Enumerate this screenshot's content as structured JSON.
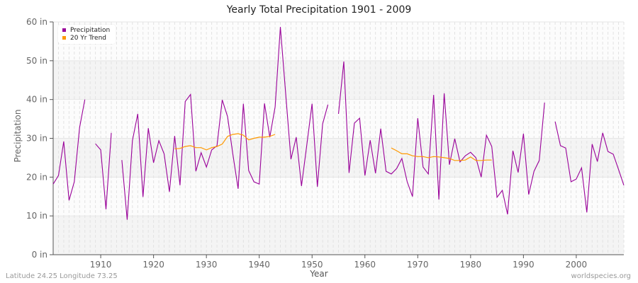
{
  "title": "Yearly Total Precipitation 1901 - 2009",
  "footer": {
    "location": "Latitude 24.25 Longitude 73.25",
    "source": "worldspecies.org"
  },
  "legend": [
    {
      "label": "Precipitation",
      "color": "#990099"
    },
    {
      "label": "20 Yr Trend",
      "color": "#ff9900"
    }
  ],
  "chart_data": {
    "type": "line",
    "title": "Yearly Total Precipitation 1901 - 2009",
    "xlabel": "Year",
    "ylabel": "Precipitation",
    "xlim": [
      1901,
      2009
    ],
    "ylim": [
      0,
      60
    ],
    "x_ticks": [
      1910,
      1920,
      1930,
      1940,
      1950,
      1960,
      1970,
      1980,
      1990,
      2000
    ],
    "y_ticks": [
      "0 in",
      "10 in",
      "20 in",
      "30 in",
      "40 in",
      "50 in",
      "60 in"
    ],
    "grid": true,
    "legend_position": "top-left",
    "series": [
      {
        "name": "Precipitation",
        "color": "#990099",
        "x": [
          1901,
          1902,
          1903,
          1904,
          1905,
          1906,
          1907,
          1908,
          1909,
          1910,
          1911,
          1912,
          1913,
          1914,
          1915,
          1916,
          1917,
          1918,
          1919,
          1920,
          1921,
          1922,
          1923,
          1924,
          1925,
          1926,
          1927,
          1928,
          1929,
          1930,
          1931,
          1932,
          1933,
          1934,
          1935,
          1936,
          1937,
          1938,
          1939,
          1940,
          1941,
          1942,
          1943,
          1944,
          1945,
          1946,
          1947,
          1948,
          1949,
          1950,
          1951,
          1952,
          1953,
          1954,
          1955,
          1956,
          1957,
          1958,
          1959,
          1960,
          1961,
          1962,
          1963,
          1964,
          1965,
          1966,
          1967,
          1968,
          1969,
          1970,
          1971,
          1972,
          1973,
          1974,
          1975,
          1976,
          1977,
          1978,
          1979,
          1980,
          1981,
          1982,
          1983,
          1984,
          1985,
          1986,
          1987,
          1988,
          1989,
          1990,
          1991,
          1992,
          1993,
          1994,
          1995,
          1996,
          1997,
          1998,
          1999,
          2000,
          2001,
          2002,
          2003,
          2004,
          2005,
          2006,
          2007,
          2008,
          2009
        ],
        "values": [
          18.2,
          20.4,
          29.2,
          14.0,
          18.8,
          32.8,
          40.0,
          null,
          28.6,
          27.0,
          11.7,
          31.4,
          null,
          24.4,
          9.0,
          29.4,
          36.3,
          14.9,
          32.6,
          23.7,
          29.4,
          26.0,
          16.2,
          30.6,
          17.9,
          39.5,
          41.3,
          21.5,
          26.3,
          22.6,
          27.0,
          28.1,
          39.9,
          35.6,
          26.0,
          17.0,
          38.9,
          21.7,
          18.8,
          18.2,
          39.0,
          30.3,
          38.1,
          58.7,
          41.5,
          24.6,
          30.3,
          17.7,
          28.3,
          38.9,
          17.5,
          33.7,
          38.7,
          null,
          36.3,
          49.8,
          21.1,
          33.9,
          35.2,
          20.4,
          29.5,
          21.0,
          32.5,
          21.5,
          20.8,
          22.2,
          24.8,
          18.8,
          15.0,
          35.2,
          22.6,
          20.8,
          41.2,
          14.2,
          41.6,
          23.2,
          29.9,
          23.9,
          25.5,
          26.4,
          25.0,
          20.0,
          30.8,
          27.9,
          14.8,
          16.6,
          10.4,
          26.8,
          21.2,
          31.2,
          15.5,
          21.5,
          24.3,
          39.2,
          null,
          34.3,
          28.1,
          27.5,
          18.8,
          19.5,
          22.4,
          10.9,
          28.5,
          24.0,
          31.4,
          26.6,
          25.9,
          22.0,
          17.9
        ]
      },
      {
        "name": "20 Yr Trend",
        "color": "#ff9900",
        "x": [
          1924,
          1925,
          1926,
          1927,
          1928,
          1929,
          1930,
          1931,
          1932,
          1933,
          1934,
          1935,
          1936,
          1937,
          1938,
          1939,
          1940,
          1941,
          1942,
          1943,
          1965,
          1966,
          1967,
          1968,
          1969,
          1970,
          1971,
          1972,
          1973,
          1974,
          1975,
          1976,
          1977,
          1978,
          1979,
          1980,
          1981,
          1982,
          1983,
          1984
        ],
        "values": [
          27.3,
          27.4,
          27.9,
          28.1,
          27.6,
          27.6,
          27.0,
          27.6,
          27.9,
          28.5,
          30.5,
          31.0,
          31.2,
          30.8,
          29.6,
          30.0,
          30.3,
          30.3,
          30.5,
          31.0,
          27.5,
          26.8,
          26.0,
          26.0,
          25.5,
          25.3,
          25.3,
          25.0,
          25.3,
          25.2,
          25.0,
          24.8,
          24.3,
          24.3,
          24.4,
          25.2,
          24.3,
          24.3,
          24.4,
          24.4
        ]
      }
    ]
  }
}
